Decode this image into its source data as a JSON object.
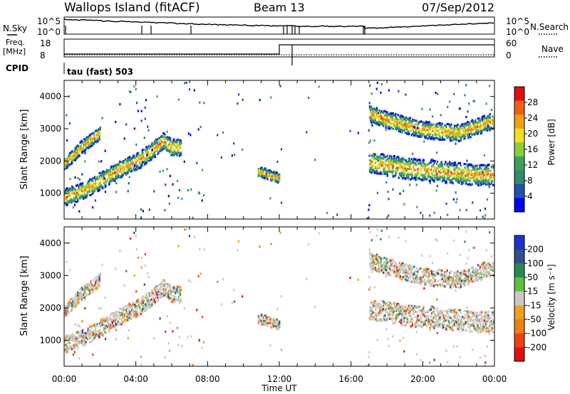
{
  "header": {
    "title": "Wallops Island (fitACF)",
    "beam": "Beam 13",
    "date": "07/Sep/2012"
  },
  "top_panels": {
    "nsky_label": "N.Sky",
    "nsky_ticks": [
      "10^5",
      "10^0"
    ],
    "nsearch_label": "N.Search",
    "freq_label": "Freq.",
    "freq_unit": "[MHz]",
    "freq_ticks": [
      "18",
      "8"
    ],
    "nave_label": "Nave",
    "nave_ticks": [
      "60",
      "0"
    ],
    "cpid_label": "CPID",
    "cpid_value": "tau (fast) 503"
  },
  "colors": {
    "power_scale": [
      "#0000ff",
      "#2050b0",
      "#2e8a70",
      "#3aa05a",
      "#8ccc3a",
      "#f0e020",
      "#f0a010",
      "#f06010",
      "#e01010"
    ],
    "velocity_scale": [
      "#2030d0",
      "#30508a",
      "#2a8a50",
      "#60c040",
      "#c8c8c8",
      "#f0a020",
      "#f08010",
      "#f04010",
      "#e01010"
    ]
  },
  "chart_data": [
    {
      "type": "heatmap",
      "name": "power",
      "xlabel": "",
      "ylabel": "Slant Range [km]",
      "xlim": [
        "00:00",
        "24:00"
      ],
      "ylim": [
        200,
        4500
      ],
      "yticks": [
        1000,
        2000,
        3000,
        4000
      ],
      "colorbar": {
        "label": "Power [dB]",
        "ticks": [
          4,
          8,
          12,
          16,
          20,
          24,
          28
        ],
        "range": [
          0,
          32
        ]
      },
      "echo_bands": [
        {
          "t": [
            0.0,
            1.0,
            2.0,
            3.0,
            4.0,
            5.0,
            5.5,
            6.0,
            6.5
          ],
          "range": [
            900,
            1100,
            1400,
            1750,
            2000,
            2400,
            2650,
            2450,
            2450
          ],
          "width": 200
        },
        {
          "t": [
            0.0,
            0.5,
            1.0,
            2.0
          ],
          "range": [
            1950,
            2200,
            2500,
            2900
          ],
          "width": 150
        },
        {
          "t": [
            10.8,
            11.2,
            11.6,
            12.0
          ],
          "range": [
            1700,
            1650,
            1550,
            1500
          ],
          "width": 120
        },
        {
          "t": [
            17.0,
            18.0,
            19.0,
            20.0,
            21.0,
            22.0,
            23.0,
            24.0
          ],
          "range": [
            2000,
            1900,
            1800,
            1750,
            1700,
            1650,
            1600,
            1600
          ],
          "width": 250
        },
        {
          "t": [
            17.0,
            18.0,
            19.0,
            20.0,
            21.0,
            22.0,
            23.0,
            24.0
          ],
          "range": [
            3500,
            3300,
            3150,
            3000,
            2950,
            2900,
            3100,
            3300
          ],
          "width": 200
        }
      ]
    },
    {
      "type": "heatmap",
      "name": "velocity",
      "xlabel": "Time UT",
      "ylabel": "Slant Range [km]",
      "xlim": [
        "00:00",
        "24:00"
      ],
      "ylim": [
        200,
        4500
      ],
      "xticks": [
        "00:00",
        "04:00",
        "08:00",
        "12:00",
        "16:00",
        "20:00",
        "00:00"
      ],
      "yticks": [
        1000,
        2000,
        3000,
        4000
      ],
      "colorbar": {
        "label": "Velocity [m s⁻¹]",
        "ticks": [
          200,
          100,
          50,
          15,
          -15,
          -50,
          -100,
          -200
        ]
      }
    }
  ]
}
